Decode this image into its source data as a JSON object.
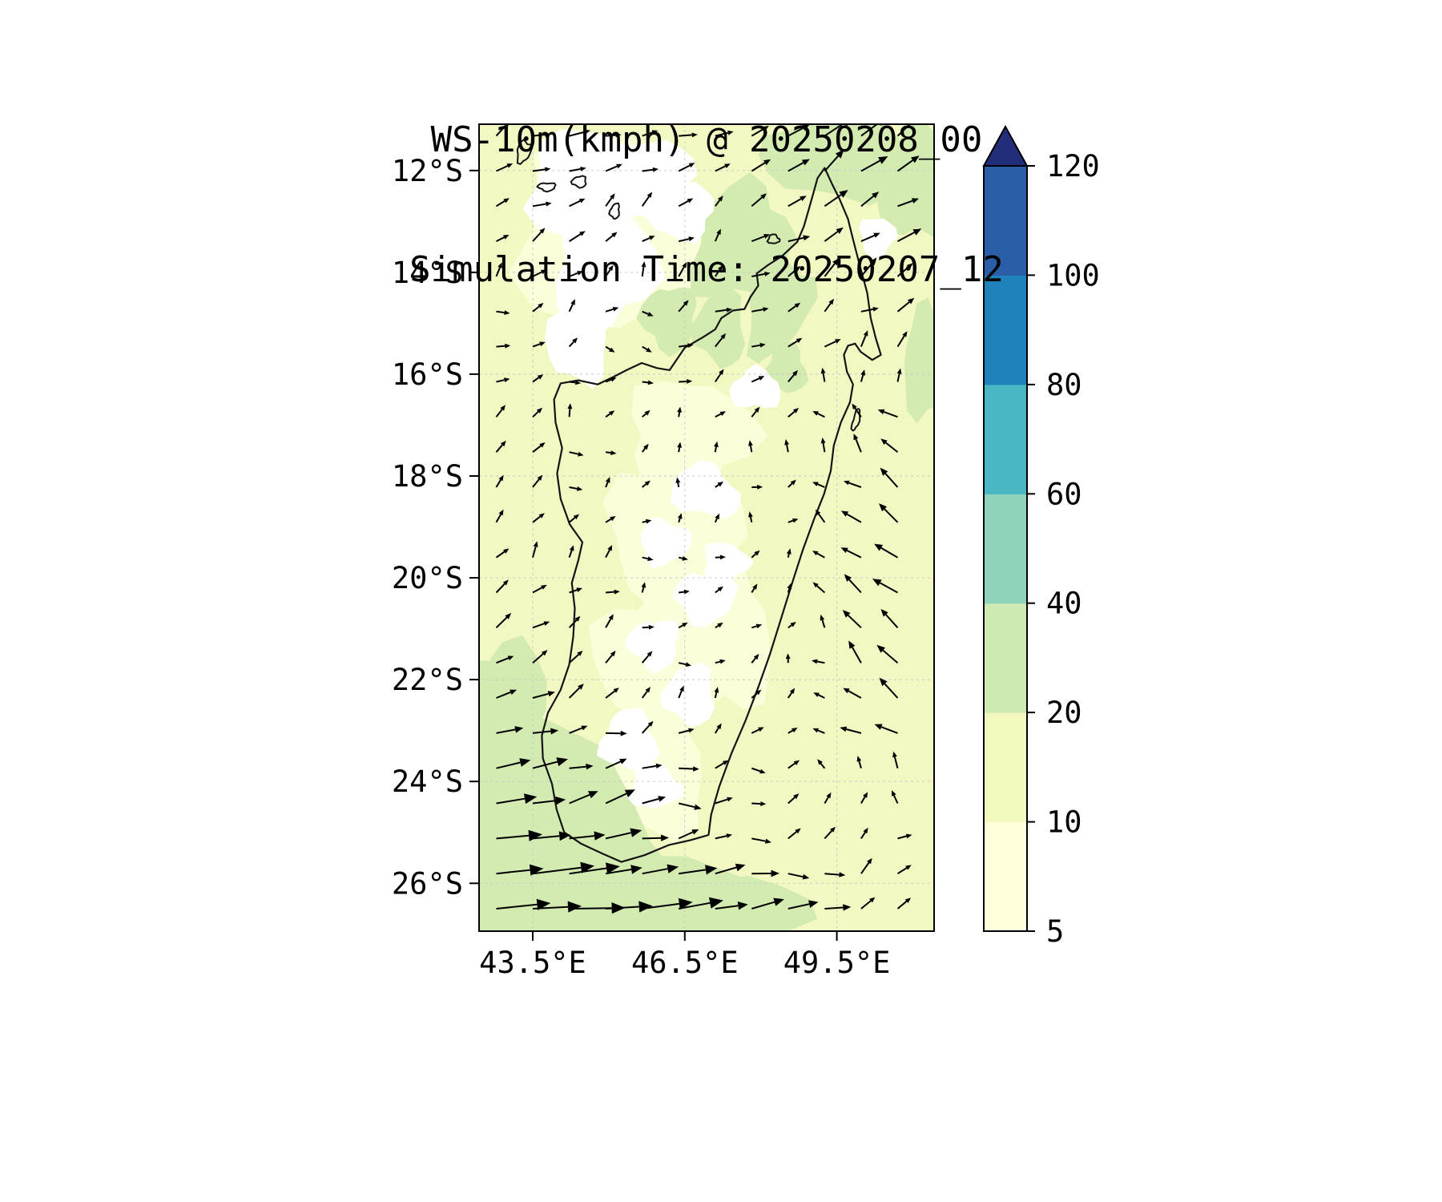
{
  "chart_data": {
    "type": "quiver_contour_map",
    "title": "WS-10m(kmph) @ 20250208_00",
    "subtitle": "Simulation Time: 20250207_12",
    "variable": "WS-10m",
    "units": "kmph",
    "valid_time": "20250208_00",
    "simulation_time": "20250207_12",
    "x_axis": {
      "tick_labels": [
        "43.5°E",
        "46.5°E",
        "49.5°E"
      ],
      "tick_values": [
        43.5,
        46.5,
        49.5
      ],
      "range": [
        42.44,
        51.42
      ]
    },
    "y_axis": {
      "tick_labels": [
        "12°S",
        "14°S",
        "16°S",
        "18°S",
        "20°S",
        "22°S",
        "24°S",
        "26°S"
      ],
      "tick_values": [
        -12,
        -14,
        -16,
        -18,
        -20,
        -22,
        -24,
        -26
      ],
      "range": [
        -26.94,
        -11.09
      ]
    },
    "colorbar": {
      "levels": [
        5,
        10,
        20,
        40,
        60,
        80,
        100,
        120
      ],
      "tick_labels": [
        "5",
        "10",
        "20",
        "40",
        "60",
        "80",
        "100",
        "120"
      ],
      "segment_colors": [
        "#fffedb",
        "#f3f9bd",
        "#cfe9b2",
        "#8ed3ba",
        "#49b8c4",
        "#2181bb",
        "#2a5fa8"
      ],
      "over_color": "#232e7a",
      "extend": "max"
    },
    "map_colors": {
      "ocean_base": "#f3f8c3",
      "band_low": "#fcfdd9",
      "band_20_40": "#d3ebb1",
      "below_min": "#ffffff",
      "coastline": "#141414",
      "grid": "#c8c8c8",
      "arrow": "#000000"
    },
    "coastline": {
      "madagascar": [
        [
          49.26,
          -11.95
        ],
        [
          49.4,
          -12.25
        ],
        [
          49.55,
          -12.55
        ],
        [
          49.72,
          -12.95
        ],
        [
          49.82,
          -13.35
        ],
        [
          49.95,
          -13.85
        ],
        [
          50.1,
          -14.4
        ],
        [
          50.17,
          -14.9
        ],
        [
          50.27,
          -15.3
        ],
        [
          50.37,
          -15.62
        ],
        [
          50.2,
          -15.72
        ],
        [
          49.97,
          -15.56
        ],
        [
          49.86,
          -15.4
        ],
        [
          49.72,
          -15.44
        ],
        [
          49.64,
          -15.62
        ],
        [
          49.7,
          -15.95
        ],
        [
          49.82,
          -16.2
        ],
        [
          49.76,
          -16.55
        ],
        [
          49.58,
          -16.95
        ],
        [
          49.44,
          -17.4
        ],
        [
          49.38,
          -17.9
        ],
        [
          49.25,
          -18.35
        ],
        [
          49.05,
          -18.85
        ],
        [
          48.83,
          -19.45
        ],
        [
          48.62,
          -20.1
        ],
        [
          48.4,
          -20.8
        ],
        [
          48.18,
          -21.5
        ],
        [
          47.95,
          -22.15
        ],
        [
          47.7,
          -22.8
        ],
        [
          47.42,
          -23.45
        ],
        [
          47.18,
          -24.1
        ],
        [
          47.02,
          -24.65
        ],
        [
          46.97,
          -25.05
        ],
        [
          46.62,
          -25.15
        ],
        [
          46.18,
          -25.25
        ],
        [
          45.7,
          -25.45
        ],
        [
          45.25,
          -25.58
        ],
        [
          44.88,
          -25.42
        ],
        [
          44.45,
          -25.22
        ],
        [
          44.12,
          -25.0
        ],
        [
          43.97,
          -24.55
        ],
        [
          43.88,
          -24.05
        ],
        [
          43.7,
          -23.55
        ],
        [
          43.68,
          -23.1
        ],
        [
          43.8,
          -22.65
        ],
        [
          44.05,
          -22.2
        ],
        [
          44.22,
          -21.7
        ],
        [
          44.3,
          -21.15
        ],
        [
          44.33,
          -20.6
        ],
        [
          44.27,
          -20.1
        ],
        [
          44.4,
          -19.65
        ],
        [
          44.48,
          -19.3
        ],
        [
          44.23,
          -18.95
        ],
        [
          44.05,
          -18.45
        ],
        [
          43.98,
          -17.95
        ],
        [
          44.08,
          -17.45
        ],
        [
          43.95,
          -16.95
        ],
        [
          43.92,
          -16.5
        ],
        [
          44.05,
          -16.18
        ],
        [
          44.4,
          -16.12
        ],
        [
          44.78,
          -16.2
        ],
        [
          45.1,
          -16.05
        ],
        [
          45.35,
          -15.92
        ],
        [
          45.65,
          -15.78
        ],
        [
          45.95,
          -15.88
        ],
        [
          46.2,
          -15.92
        ],
        [
          46.35,
          -15.7
        ],
        [
          46.5,
          -15.48
        ],
        [
          46.85,
          -15.28
        ],
        [
          47.1,
          -15.12
        ],
        [
          47.22,
          -14.9
        ],
        [
          47.45,
          -14.75
        ],
        [
          47.68,
          -14.72
        ],
        [
          47.8,
          -14.48
        ],
        [
          47.95,
          -14.26
        ],
        [
          47.92,
          -14.02
        ],
        [
          48.15,
          -13.85
        ],
        [
          48.42,
          -13.68
        ],
        [
          48.72,
          -13.4
        ],
        [
          48.85,
          -13.1
        ],
        [
          48.95,
          -12.75
        ],
        [
          49.05,
          -12.4
        ],
        [
          49.12,
          -12.15
        ]
      ],
      "islands": [
        [
          43.32,
          -11.63,
          0.13,
          0.22,
          15
        ],
        [
          43.78,
          -12.32,
          0.17,
          0.08,
          0
        ],
        [
          44.42,
          -12.22,
          0.14,
          0.11,
          0
        ],
        [
          45.12,
          -12.8,
          0.09,
          0.15,
          10
        ],
        [
          48.25,
          -13.35,
          0.11,
          0.09,
          0
        ],
        [
          49.88,
          -16.9,
          0.06,
          0.22,
          15
        ]
      ]
    },
    "shading": {
      "pale": [
        [
          45.2,
          -13.2,
          2.1,
          1.9,
          0
        ],
        [
          46.6,
          -17.2,
          1.25,
          1.1,
          0
        ],
        [
          46.3,
          -19.2,
          1.3,
          1.5,
          0
        ],
        [
          45.9,
          -21.6,
          1.15,
          1.4,
          0
        ],
        [
          45.8,
          -23.9,
          1.15,
          1.2,
          0
        ],
        [
          47.3,
          -21.2,
          0.9,
          1.5,
          0
        ]
      ],
      "green": [
        [
          43.1,
          -25.4,
          3.2,
          2.7,
          15
        ],
        [
          45.6,
          -26.6,
          2.6,
          1.3,
          0
        ],
        [
          47.0,
          -26.7,
          1.9,
          0.9,
          0
        ],
        [
          42.9,
          -22.6,
          0.9,
          1.4,
          0
        ],
        [
          49.5,
          -11.7,
          1.4,
          0.9,
          0
        ],
        [
          51.1,
          -12.3,
          0.8,
          1.1,
          0
        ],
        [
          51.3,
          -15.8,
          0.5,
          1.1,
          0
        ],
        [
          47.6,
          -13.4,
          0.9,
          1.2,
          25
        ],
        [
          48.35,
          -14.7,
          0.6,
          1.0,
          20
        ],
        [
          46.2,
          -14.9,
          0.55,
          0.65,
          0
        ],
        [
          47.2,
          -15.1,
          0.5,
          0.75,
          0
        ],
        [
          48.5,
          -15.9,
          0.4,
          0.5,
          0
        ]
      ],
      "white": [
        [
          44.6,
          -12.3,
          1.25,
          1.05,
          0
        ],
        [
          44.9,
          -13.9,
          1.0,
          1.25,
          10
        ],
        [
          45.8,
          -12.1,
          0.85,
          0.75,
          0
        ],
        [
          46.4,
          -12.8,
          0.7,
          0.55,
          0
        ],
        [
          44.4,
          -15.3,
          0.6,
          0.9,
          0
        ],
        [
          47.9,
          -16.3,
          0.5,
          0.4,
          0
        ],
        [
          46.9,
          -18.3,
          0.7,
          0.5,
          20
        ],
        [
          46.1,
          -19.3,
          0.5,
          0.45,
          0
        ],
        [
          46.9,
          -20.4,
          0.6,
          0.5,
          0
        ],
        [
          45.9,
          -21.3,
          0.5,
          0.5,
          0
        ],
        [
          46.6,
          -22.3,
          0.5,
          0.6,
          0
        ],
        [
          45.4,
          -23.2,
          0.55,
          0.6,
          0
        ],
        [
          45.9,
          -24.1,
          0.5,
          0.45,
          0
        ],
        [
          47.3,
          -19.7,
          0.45,
          0.4,
          0
        ],
        [
          50.3,
          -13.3,
          0.35,
          0.4,
          0
        ]
      ]
    },
    "wind_field": {
      "grid_lons": [
        42.5,
        44.0,
        45.5,
        47.0,
        48.5,
        50.0,
        51.4
      ],
      "grid_lats": [
        -11.2,
        -13.0,
        -15.0,
        -17.0,
        -19.0,
        -21.0,
        -23.0,
        -25.0,
        -26.9
      ],
      "u": [
        [
          4,
          5,
          3,
          4,
          6,
          7,
          8
        ],
        [
          3,
          4,
          3,
          2,
          5,
          6,
          7
        ],
        [
          2,
          2,
          2,
          3,
          3,
          4,
          5
        ],
        [
          2,
          2,
          1,
          2,
          2,
          -3,
          -5
        ],
        [
          2,
          2,
          1,
          1,
          1,
          -5,
          -6
        ],
        [
          4,
          3,
          2,
          1,
          1,
          -5,
          -7
        ],
        [
          9,
          6,
          4,
          2,
          2,
          -4,
          -6
        ],
        [
          16,
          12,
          8,
          5,
          3,
          2,
          3
        ],
        [
          24,
          22,
          18,
          13,
          9,
          6,
          5
        ]
      ],
      "v": [
        [
          2,
          2,
          1,
          3,
          5,
          6,
          5
        ],
        [
          1,
          2,
          2,
          2,
          3,
          4,
          4
        ],
        [
          2,
          1,
          1,
          2,
          2,
          3,
          3
        ],
        [
          2,
          2,
          1,
          1,
          2,
          3,
          4
        ],
        [
          3,
          2,
          1,
          1,
          1,
          4,
          5
        ],
        [
          3,
          3,
          2,
          1,
          1,
          4,
          5
        ],
        [
          2,
          2,
          2,
          1,
          1,
          3,
          4
        ],
        [
          2,
          2,
          2,
          1,
          1,
          2,
          2
        ],
        [
          1,
          1,
          2,
          2,
          2,
          2,
          2
        ]
      ],
      "arrow_grid": {
        "lon_start": 42.78,
        "dlon": 0.72,
        "lat_start": -11.32,
        "dlat": 0.69
      }
    }
  }
}
